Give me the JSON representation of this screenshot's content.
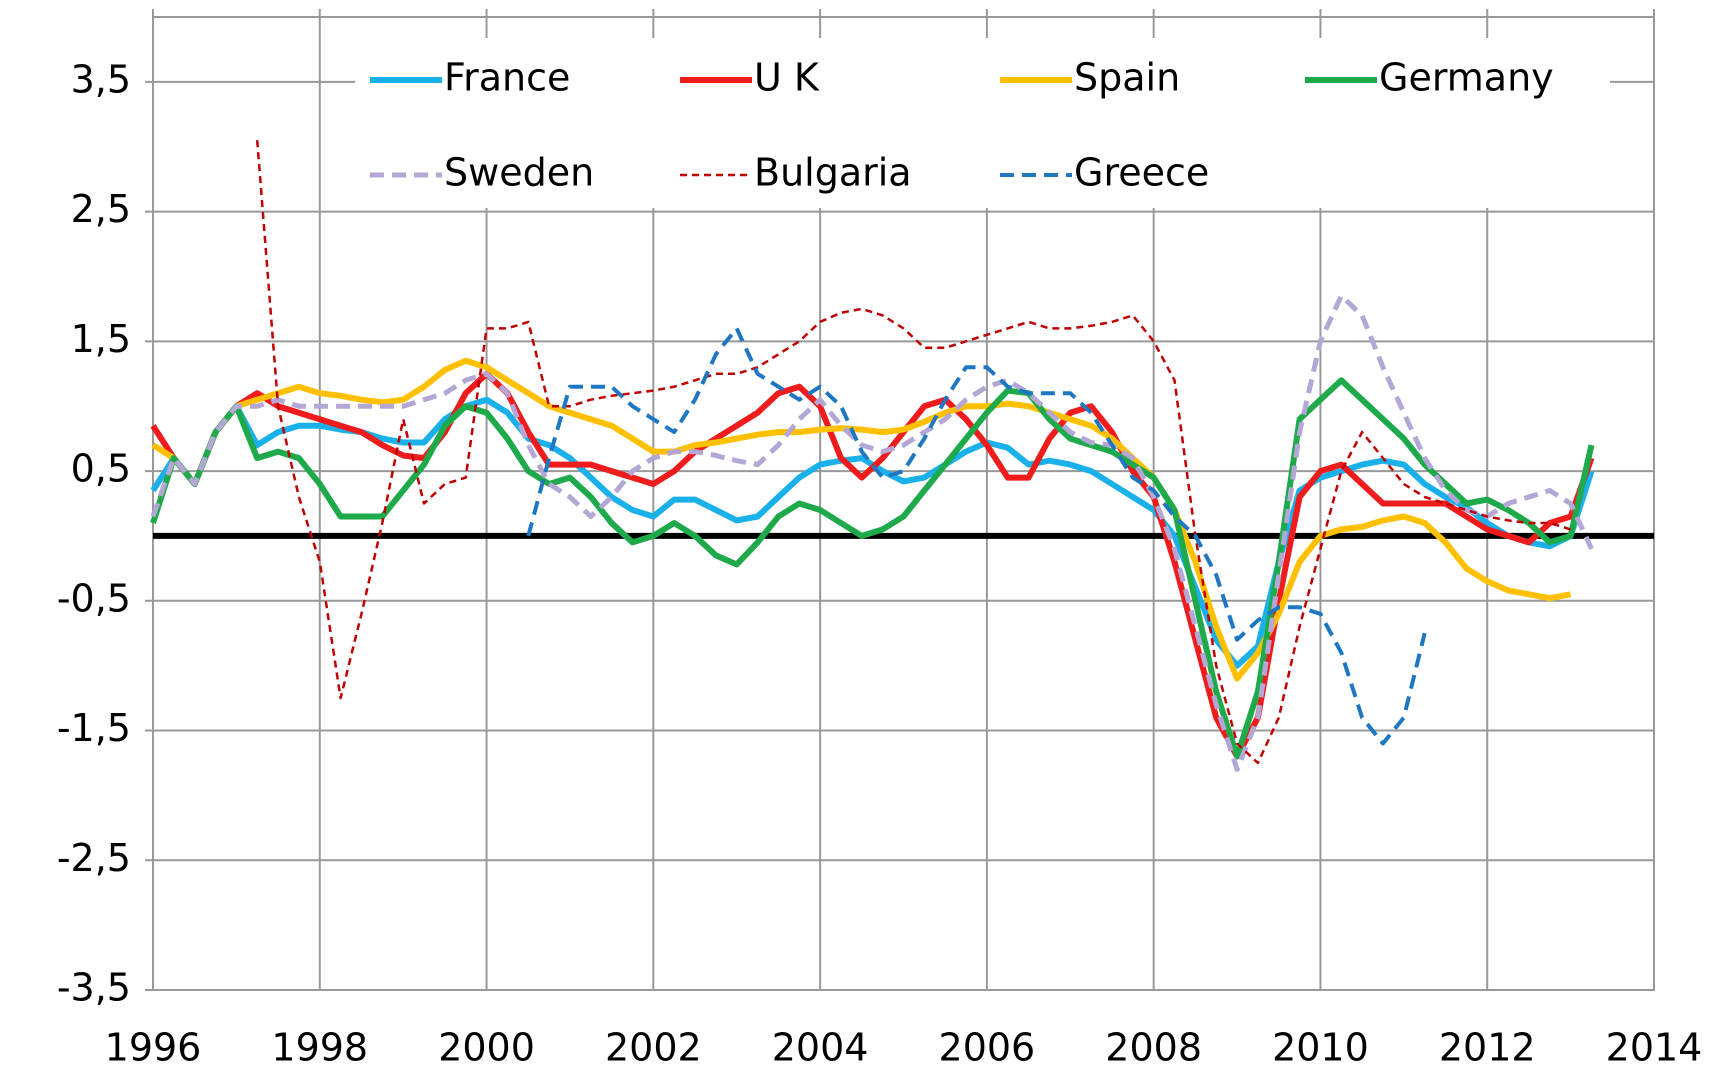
{
  "chart_data": {
    "type": "line",
    "x": [
      1996,
      1996.25,
      1996.5,
      1996.75,
      1997,
      1997.25,
      1997.5,
      1997.75,
      1998,
      1998.25,
      1998.5,
      1998.75,
      1999,
      1999.25,
      1999.5,
      1999.75,
      2000,
      2000.25,
      2000.5,
      2000.75,
      2001,
      2001.25,
      2001.5,
      2001.75,
      2002,
      2002.25,
      2002.5,
      2002.75,
      2003,
      2003.25,
      2003.5,
      2003.75,
      2004,
      2004.25,
      2004.5,
      2004.75,
      2005,
      2005.25,
      2005.5,
      2005.75,
      2006,
      2006.25,
      2006.5,
      2006.75,
      2007,
      2007.25,
      2007.5,
      2007.75,
      2008,
      2008.25,
      2008.5,
      2008.75,
      2009,
      2009.25,
      2009.5,
      2009.75,
      2010,
      2010.25,
      2010.5,
      2010.75,
      2011,
      2011.25,
      2011.5,
      2011.75,
      2012,
      2012.25,
      2012.5,
      2012.75,
      2013,
      2013.25
    ],
    "xlim": [
      1996,
      2014
    ],
    "xticks": [
      1996,
      1998,
      2000,
      2002,
      2004,
      2006,
      2008,
      2010,
      2012,
      2014
    ],
    "ylim": [
      -3.5,
      4
    ],
    "yticks": [
      {
        "value": -3.5,
        "label": "-3,5"
      },
      {
        "value": -2.5,
        "label": "-2,5"
      },
      {
        "value": -1.5,
        "label": "-1,5"
      },
      {
        "value": -0.5,
        "label": "-0,5"
      },
      {
        "value": 0.5,
        "label": "0,5"
      },
      {
        "value": 1.5,
        "label": "1,5"
      },
      {
        "value": 2.5,
        "label": "2,5"
      },
      {
        "value": 3.5,
        "label": "3,5"
      }
    ],
    "grid": true,
    "legend": "top",
    "series": [
      {
        "name": "France",
        "color": "#1ab0ea",
        "dash": false,
        "linewidth": 6,
        "values": [
          0.35,
          0.6,
          0.4,
          0.8,
          1.0,
          0.7,
          0.8,
          0.85,
          0.85,
          0.82,
          0.8,
          0.75,
          0.72,
          0.72,
          0.9,
          1.0,
          1.05,
          0.95,
          0.75,
          0.7,
          0.6,
          0.45,
          0.3,
          0.2,
          0.15,
          0.28,
          0.28,
          0.2,
          0.12,
          0.15,
          0.3,
          0.45,
          0.55,
          0.58,
          0.6,
          0.5,
          0.42,
          0.45,
          0.55,
          0.65,
          0.72,
          0.68,
          0.55,
          0.58,
          0.55,
          0.5,
          0.4,
          0.3,
          0.2,
          0.0,
          -0.4,
          -0.8,
          -1.0,
          -0.85,
          -0.2,
          0.35,
          0.45,
          0.5,
          0.55,
          0.58,
          0.55,
          0.4,
          0.3,
          0.22,
          0.1,
          0.0,
          -0.05,
          -0.08,
          0.0,
          0.5
        ]
      },
      {
        "name": "U K",
        "color": "#ee1c1c",
        "dash": false,
        "linewidth": 6,
        "values": [
          0.85,
          0.6,
          0.4,
          0.8,
          1.0,
          1.1,
          1.0,
          0.95,
          0.9,
          0.85,
          0.8,
          0.7,
          0.62,
          0.6,
          0.8,
          1.1,
          1.25,
          1.1,
          0.8,
          0.55,
          0.55,
          0.55,
          0.5,
          0.45,
          0.4,
          0.5,
          0.65,
          0.75,
          0.85,
          0.95,
          1.1,
          1.15,
          1.0,
          0.6,
          0.45,
          0.6,
          0.8,
          1.0,
          1.05,
          0.9,
          0.7,
          0.45,
          0.45,
          0.75,
          0.95,
          1.0,
          0.8,
          0.5,
          0.3,
          -0.2,
          -0.8,
          -1.4,
          -1.7,
          -1.4,
          -0.5,
          0.3,
          0.5,
          0.55,
          0.4,
          0.25,
          0.25,
          0.25,
          0.25,
          0.15,
          0.05,
          0.0,
          -0.05,
          0.1,
          0.15,
          0.6
        ]
      },
      {
        "name": "Spain",
        "color": "#ffc000",
        "dash": false,
        "linewidth": 6,
        "values": [
          0.7,
          0.6,
          0.4,
          0.8,
          1.0,
          1.05,
          1.1,
          1.15,
          1.1,
          1.08,
          1.05,
          1.03,
          1.05,
          1.15,
          1.28,
          1.35,
          1.3,
          1.2,
          1.1,
          1.0,
          0.95,
          0.9,
          0.85,
          0.75,
          0.65,
          0.65,
          0.7,
          0.72,
          0.75,
          0.78,
          0.8,
          0.8,
          0.82,
          0.83,
          0.82,
          0.8,
          0.82,
          0.88,
          0.95,
          1.0,
          1.0,
          1.02,
          1.0,
          0.95,
          0.9,
          0.85,
          0.75,
          0.6,
          0.45,
          0.2,
          -0.2,
          -0.7,
          -1.1,
          -0.9,
          -0.6,
          -0.2,
          0.0,
          0.05,
          0.07,
          0.12,
          0.15,
          0.1,
          -0.05,
          -0.25,
          -0.35,
          -0.42,
          -0.45,
          -0.48,
          -0.45,
          null
        ]
      },
      {
        "name": "Germany",
        "color": "#1eaa4b",
        "dash": false,
        "linewidth": 6,
        "values": [
          0.1,
          0.6,
          0.4,
          0.8,
          1.0,
          0.6,
          0.65,
          0.6,
          0.4,
          0.15,
          0.15,
          0.15,
          0.35,
          0.55,
          0.85,
          1.0,
          0.95,
          0.75,
          0.5,
          0.4,
          0.45,
          0.3,
          0.1,
          -0.05,
          0.0,
          0.1,
          0.0,
          -0.15,
          -0.22,
          -0.05,
          0.15,
          0.25,
          0.2,
          0.1,
          0.0,
          0.05,
          0.15,
          0.35,
          0.55,
          0.75,
          0.95,
          1.12,
          1.1,
          0.9,
          0.75,
          0.7,
          0.65,
          0.55,
          0.45,
          0.2,
          -0.5,
          -1.2,
          -1.7,
          -1.2,
          -0.2,
          0.9,
          1.05,
          1.2,
          1.05,
          0.9,
          0.75,
          0.55,
          0.4,
          0.25,
          0.28,
          0.2,
          0.1,
          -0.05,
          0.0,
          0.7
        ]
      },
      {
        "name": "Sweden",
        "color": "#b4a7d6",
        "dash": true,
        "linewidth": 5,
        "values": [
          0.15,
          0.6,
          0.4,
          0.8,
          1.0,
          1.0,
          1.05,
          1.0,
          1.0,
          1.0,
          1.0,
          1.0,
          1.0,
          1.05,
          1.1,
          1.2,
          1.25,
          1.1,
          0.7,
          0.4,
          0.3,
          0.15,
          0.3,
          0.5,
          0.6,
          0.65,
          0.65,
          0.62,
          0.58,
          0.55,
          0.7,
          0.9,
          1.05,
          0.85,
          0.7,
          0.65,
          0.7,
          0.8,
          0.9,
          1.05,
          1.15,
          1.2,
          1.1,
          0.95,
          0.8,
          0.72,
          0.7,
          0.6,
          0.3,
          -0.1,
          -0.7,
          -1.3,
          -1.8,
          -1.4,
          -0.3,
          0.8,
          1.5,
          1.85,
          1.7,
          1.3,
          0.95,
          0.6,
          0.35,
          0.2,
          0.15,
          0.25,
          0.3,
          0.35,
          0.25,
          -0.1
        ]
      },
      {
        "name": "Bulgaria",
        "color": "#c00000",
        "dash": true,
        "linewidth": 2.5,
        "values": [
          null,
          null,
          null,
          null,
          null,
          3.05,
          1.0,
          0.3,
          -0.2,
          -1.25,
          -0.6,
          0.1,
          0.9,
          0.25,
          0.4,
          0.45,
          1.6,
          1.6,
          1.65,
          1.0,
          1.0,
          1.05,
          1.08,
          1.1,
          1.12,
          1.15,
          1.2,
          1.25,
          1.25,
          1.3,
          1.4,
          1.5,
          1.65,
          1.72,
          1.75,
          1.7,
          1.6,
          1.45,
          1.45,
          1.5,
          1.55,
          1.6,
          1.65,
          1.6,
          1.6,
          1.62,
          1.65,
          1.7,
          1.5,
          1.2,
          0.0,
          -1.0,
          -1.6,
          -1.75,
          -1.4,
          -0.7,
          -0.1,
          0.5,
          0.8,
          0.6,
          0.4,
          0.3,
          0.25,
          0.2,
          0.15,
          0.12,
          0.1,
          0.1,
          0.05,
          null
        ]
      },
      {
        "name": "Greece",
        "color": "#1f77c4",
        "dash": true,
        "linewidth": 4,
        "values": [
          null,
          null,
          null,
          null,
          null,
          null,
          null,
          null,
          null,
          null,
          null,
          null,
          null,
          null,
          null,
          null,
          null,
          null,
          0.0,
          0.6,
          1.15,
          1.15,
          1.15,
          1.0,
          0.9,
          0.8,
          1.05,
          1.4,
          1.6,
          1.25,
          1.15,
          1.05,
          1.15,
          1.0,
          0.65,
          0.45,
          0.5,
          0.75,
          1.05,
          1.3,
          1.3,
          1.15,
          1.1,
          1.1,
          1.1,
          0.95,
          0.7,
          0.45,
          0.35,
          0.15,
          0.0,
          -0.3,
          -0.8,
          -0.65,
          -0.55,
          -0.55,
          -0.6,
          -0.9,
          -1.4,
          -1.6,
          -1.4,
          -0.75,
          null,
          null,
          null,
          null,
          null,
          null,
          null,
          null
        ]
      }
    ]
  }
}
